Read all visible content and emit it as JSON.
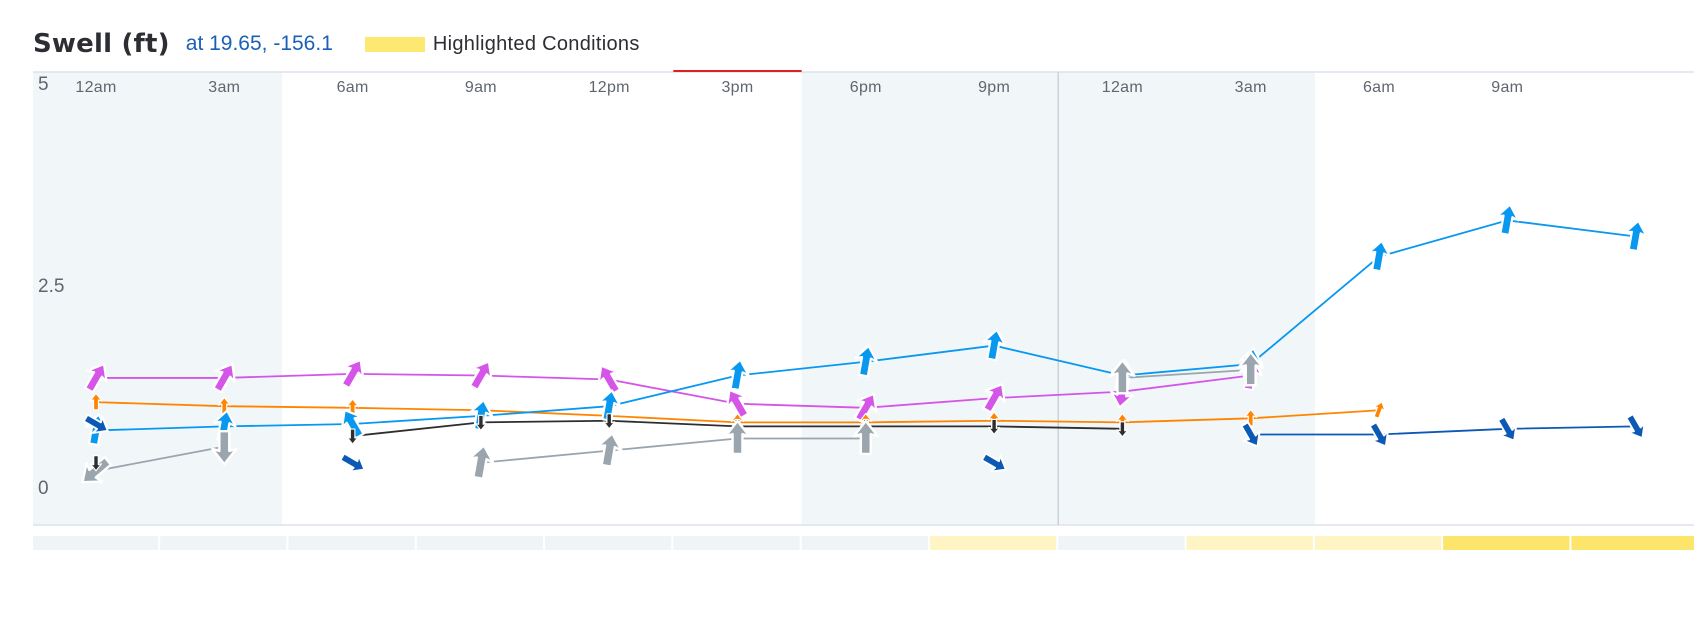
{
  "header": {
    "title": "Swell (ft)",
    "location": "at 19.65, -156.1",
    "legend_label": "Highlighted Conditions",
    "legend_color": "#fde871"
  },
  "colors": {
    "night_shade": "#f1f6f9",
    "grid": "#dbe4ea",
    "current_marker": "#e02020",
    "highlight_light": "#fef4c4",
    "highlight_strong": "#fde56b",
    "bar_base": "#eff4f7"
  },
  "chart_data": {
    "type": "line",
    "title": "Swell (ft)",
    "xlabel": "",
    "ylabel": "",
    "ylim": [
      0,
      5
    ],
    "ytick_labels": [
      "5",
      "2.5",
      "0"
    ],
    "x_tick_labels": [
      "12am",
      "3am",
      "6am",
      "9am",
      "12pm",
      "3pm",
      "6pm",
      "9pm",
      "12am",
      "3am",
      "6am",
      "9am"
    ],
    "grid": false,
    "legend": "top",
    "series": [
      {
        "color": "#d455e8",
        "values": [
          1.35,
          1.35,
          1.4,
          1.38,
          1.33,
          1.03,
          0.98,
          1.1,
          1.18,
          1.38,
          null,
          null,
          null
        ],
        "directions": [
          30,
          30,
          30,
          30,
          330,
          330,
          30,
          30,
          190,
          10,
          null,
          null,
          null
        ]
      },
      {
        "color": "#ff8400",
        "values": [
          1.05,
          1.0,
          0.98,
          0.95,
          0.88,
          0.8,
          0.8,
          0.82,
          0.8,
          0.85,
          0.95,
          null,
          null
        ],
        "directions": [
          0,
          0,
          0,
          0,
          0,
          0,
          0,
          0,
          0,
          0,
          20,
          null,
          null
        ],
        "marker_scale": 0.55
      },
      {
        "color": "#0898ef",
        "values": [
          0.7,
          0.75,
          0.78,
          0.88,
          1.0,
          1.38,
          1.55,
          1.75,
          1.38,
          1.52,
          2.85,
          3.3,
          3.1
        ],
        "directions": [
          10,
          10,
          330,
          10,
          10,
          10,
          10,
          10,
          10,
          10,
          10,
          10,
          10
        ]
      },
      {
        "color": "#2e2e2e",
        "values": [
          null,
          null,
          0.63,
          0.8,
          0.82,
          0.75,
          0.75,
          0.75,
          0.72,
          null,
          null,
          null,
          null
        ],
        "directions": [
          null,
          null,
          180,
          180,
          180,
          180,
          180,
          180,
          180,
          null,
          null,
          null,
          null
        ],
        "marker_scale": 0.5
      },
      {
        "color": "#0c59b5",
        "values": [
          0.78,
          null,
          0.3,
          null,
          null,
          null,
          null,
          null,
          null,
          0.65,
          0.65,
          0.72,
          0.75
        ],
        "directions": [
          120,
          null,
          120,
          null,
          null,
          null,
          null,
          null,
          null,
          150,
          150,
          150,
          150
        ],
        "marker_scale": 0.85
      },
      {
        "color": "#9aa5ae",
        "values": [
          0.2,
          0.5,
          null,
          0.3,
          0.45,
          0.6,
          0.6,
          null,
          1.35,
          1.45,
          null,
          null,
          null
        ],
        "directions": [
          230,
          180,
          null,
          10,
          10,
          0,
          0,
          null,
          0,
          0,
          null,
          null,
          null
        ],
        "marker_scale": 1.1
      }
    ],
    "lone_markers": [
      {
        "color": "#0c59b5",
        "index": 7,
        "value": 0.3,
        "direction": 120,
        "marker_scale": 0.85
      },
      {
        "color": "#2e2e2e",
        "index": 0,
        "value": 0.3,
        "direction": 180,
        "marker_scale": 0.5
      }
    ],
    "night_bands": [
      [
        0,
        1.45
      ],
      [
        6,
        9.5
      ]
    ],
    "day_boundary_index": 7.5,
    "current_index_range": [
      4.5,
      5.5
    ],
    "condition_bar": [
      "none",
      "none",
      "none",
      "none",
      "none",
      "none",
      "none",
      "light",
      "none",
      "light",
      "light",
      "strong",
      "strong"
    ]
  }
}
